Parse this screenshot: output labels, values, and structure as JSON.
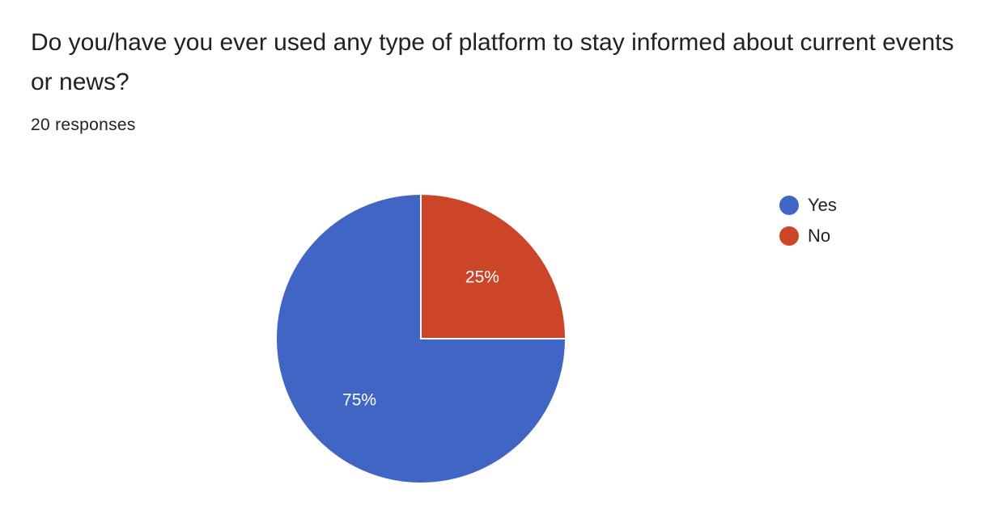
{
  "question": {
    "title": "Do you/have you ever used any type of platform to stay informed about current events or news?",
    "responses": "20 responses"
  },
  "chart_data": {
    "type": "pie",
    "title": "Do you/have you ever used any type of platform to stay informed about current events or news?",
    "categories": [
      "Yes",
      "No"
    ],
    "values": [
      75,
      25
    ],
    "labels": [
      "75%",
      "25%"
    ],
    "colors": [
      "#4065c5",
      "#cc4528"
    ],
    "start_angle": "12 o'clock",
    "direction": "clockwise, starting with No",
    "legend_position": "top-right"
  }
}
